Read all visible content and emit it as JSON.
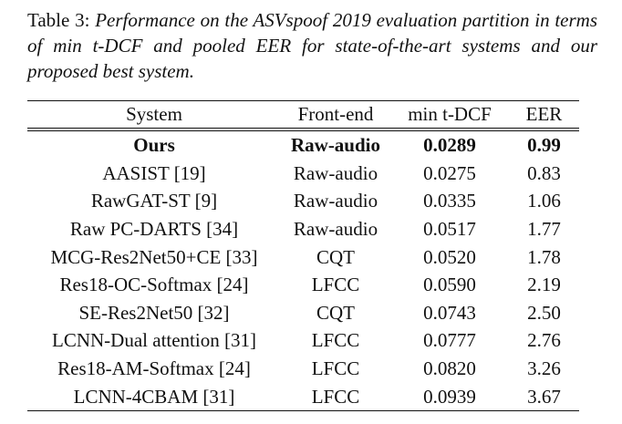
{
  "caption": {
    "label": "Table 3:",
    "text": "Performance on the ASVspoof 2019 evaluation partition in terms of min t-DCF and pooled EER for state-of-the-art systems and our proposed best system."
  },
  "table": {
    "headers": {
      "system": "System",
      "frontend": "Front-end",
      "mintdcf": "min t-DCF",
      "eer": "EER"
    },
    "rows": [
      {
        "system": "Ours",
        "frontend": "Raw-audio",
        "mintdcf": "0.0289",
        "eer": "0.99"
      },
      {
        "system": "AASIST [19]",
        "frontend": "Raw-audio",
        "mintdcf": "0.0275",
        "eer": "0.83"
      },
      {
        "system": "RawGAT-ST [9]",
        "frontend": "Raw-audio",
        "mintdcf": "0.0335",
        "eer": "1.06"
      },
      {
        "system": "Raw PC-DARTS [34]",
        "frontend": "Raw-audio",
        "mintdcf": "0.0517",
        "eer": "1.77"
      },
      {
        "system": "MCG-Res2Net50+CE [33]",
        "frontend": "CQT",
        "mintdcf": "0.0520",
        "eer": "1.78"
      },
      {
        "system": "Res18-OC-Softmax [24]",
        "frontend": "LFCC",
        "mintdcf": "0.0590",
        "eer": "2.19"
      },
      {
        "system": "SE-Res2Net50 [32]",
        "frontend": "CQT",
        "mintdcf": "0.0743",
        "eer": "2.50"
      },
      {
        "system": "LCNN-Dual attention [31]",
        "frontend": "LFCC",
        "mintdcf": "0.0777",
        "eer": "2.76"
      },
      {
        "system": "Res18-AM-Softmax [24]",
        "frontend": "LFCC",
        "mintdcf": "0.0820",
        "eer": "3.26"
      },
      {
        "system": "LCNN-4CBAM [31]",
        "frontend": "LFCC",
        "mintdcf": "0.0939",
        "eer": "3.67"
      }
    ]
  }
}
